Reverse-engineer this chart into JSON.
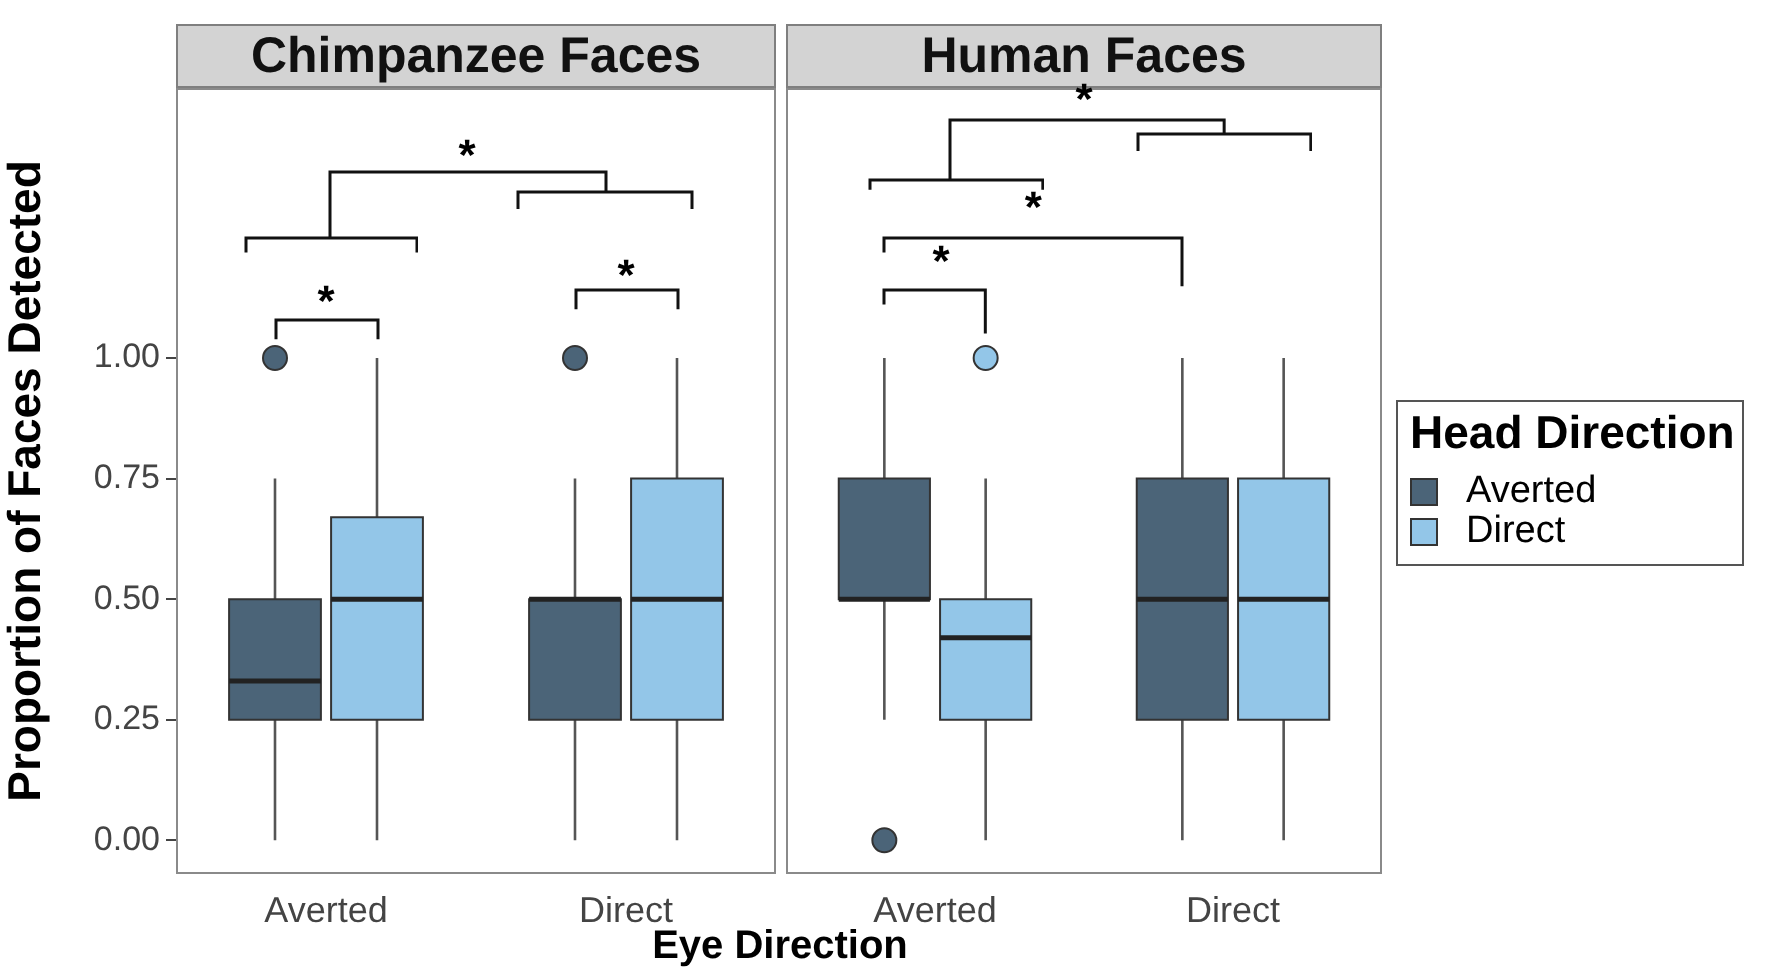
{
  "chart_data": [
    {
      "type": "box",
      "title": "Chimpanzee Faces",
      "xlabel": "Eye Direction",
      "ylabel": "Proportion of Faces Detected",
      "categories": [
        "Averted",
        "Direct"
      ],
      "ylim": [
        -0.07,
        1.56
      ],
      "yticks": [
        {
          "value": 0,
          "label": "0.00"
        },
        {
          "value": 0.25,
          "label": "0.25"
        },
        {
          "value": 0.5,
          "label": "0.50"
        },
        {
          "value": 0.75,
          "label": "0.75"
        },
        {
          "value": 1,
          "label": "1.00"
        }
      ],
      "series": [
        {
          "color": "#4b6478",
          "boxes": [
            {
              "low": 0,
              "q1": 0.25,
              "median": 0.33,
              "q3": 0.5,
              "high": 0.75,
              "outliers": [
                1
              ]
            },
            {
              "low": 0,
              "q1": 0.25,
              "median": 0.5,
              "q3": 0.5,
              "high": 0.75,
              "outliers": [
                1
              ]
            }
          ]
        },
        {
          "color": "#93c6e8",
          "boxes": [
            {
              "low": 0,
              "q1": 0.25,
              "median": 0.5,
              "q3": 0.67,
              "high": 1
            },
            {
              "low": 0,
              "q1": 0.25,
              "median": 0.5,
              "q3": 0.75,
              "high": 1
            }
          ]
        }
      ],
      "annotations": [
        "*",
        "*",
        "*"
      ],
      "grid": false,
      "legend": false
    },
    {
      "type": "box",
      "title": "Human Faces",
      "categories": [
        "Averted",
        "Direct"
      ],
      "ylim": [
        -0.07,
        1.56
      ],
      "tick_labels": "x",
      "series": [
        {
          "name": "Averted",
          "color": "#4b6478",
          "boxes": [
            {
              "low": 0.25,
              "q1": 0.5,
              "median": 0.5,
              "q3": 0.75,
              "high": 1,
              "outliers": [
                0
              ]
            },
            {
              "low": 0,
              "q1": 0.25,
              "median": 0.5,
              "q3": 0.75,
              "high": 1
            }
          ]
        },
        {
          "name": "Direct",
          "color": "#93c6e8",
          "boxes": [
            {
              "low": 0,
              "q1": 0.25,
              "median": 0.42,
              "q3": 0.5,
              "high": 0.75,
              "outliers": [
                1
              ]
            },
            {
              "low": 0,
              "q1": 0.25,
              "median": 0.5,
              "q3": 0.75,
              "high": 1
            }
          ]
        }
      ],
      "annotations": [
        "*",
        "*",
        "*"
      ],
      "grid": false,
      "legend": "right",
      "legend_title": "Head Direction"
    }
  ]
}
